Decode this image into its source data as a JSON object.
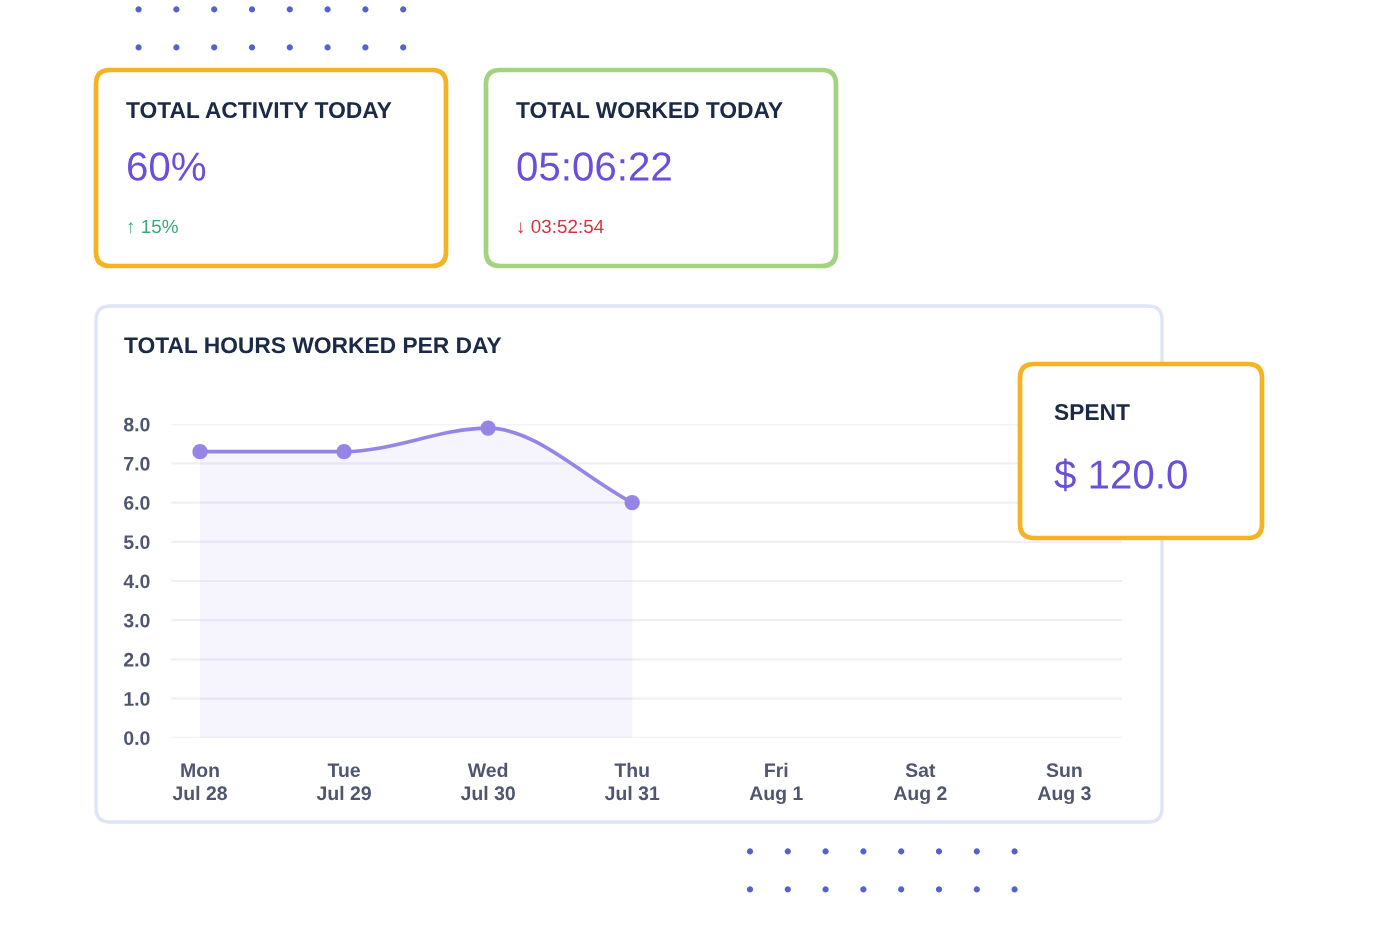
{
  "chart_data": [
    {
      "type": "other",
      "title": "TOTAL ACTIVITY TODAY",
      "annotations": [
        "60%",
        "↑ 15%"
      ],
      "color": "#f5b324",
      "colors": [
        "#6b4fd8",
        "#35a873"
      ]
    },
    {
      "type": "other",
      "title": "TOTAL WORKED TODAY",
      "annotations": [
        "05:06:22",
        "↓ 03:52:54"
      ],
      "color": "#a3d37f",
      "colors": [
        "#6b4fd8",
        "#d9303e"
      ]
    },
    {
      "type": "area",
      "title": "TOTAL HOURS WORKED PER DAY",
      "categories": [
        "Mon\nJul 28",
        "Tue\nJul 29",
        "Wed\nJul 30",
        "Thu\nJul 31",
        "Fri\nAug 1",
        "Sat\nAug 2",
        "Sun\nAug 3"
      ],
      "ylim": [
        0,
        8
      ],
      "yticks": [
        {
          "value": 0,
          "label": "0.0"
        },
        {
          "value": 1,
          "label": "1.0"
        },
        {
          "value": 2,
          "label": "2.0"
        },
        {
          "value": 3,
          "label": "3.0"
        },
        {
          "value": 4,
          "label": "4.0"
        },
        {
          "value": 5,
          "label": "5.0"
        },
        {
          "value": 6,
          "label": "6.0"
        },
        {
          "value": 7,
          "label": "7.0"
        },
        {
          "value": 8,
          "label": "8.0"
        }
      ],
      "grid": "y",
      "marker": "circle",
      "series": [
        {
          "color": "#9684e6",
          "values": [
            7.3,
            7.3,
            7.9,
            6.0,
            null,
            null,
            null
          ]
        }
      ]
    },
    {
      "type": "other",
      "title": "SPENT",
      "annotations": [
        "$ 120.0"
      ],
      "color": "#f5b324",
      "colors": [
        "#6b4fd8"
      ]
    }
  ]
}
